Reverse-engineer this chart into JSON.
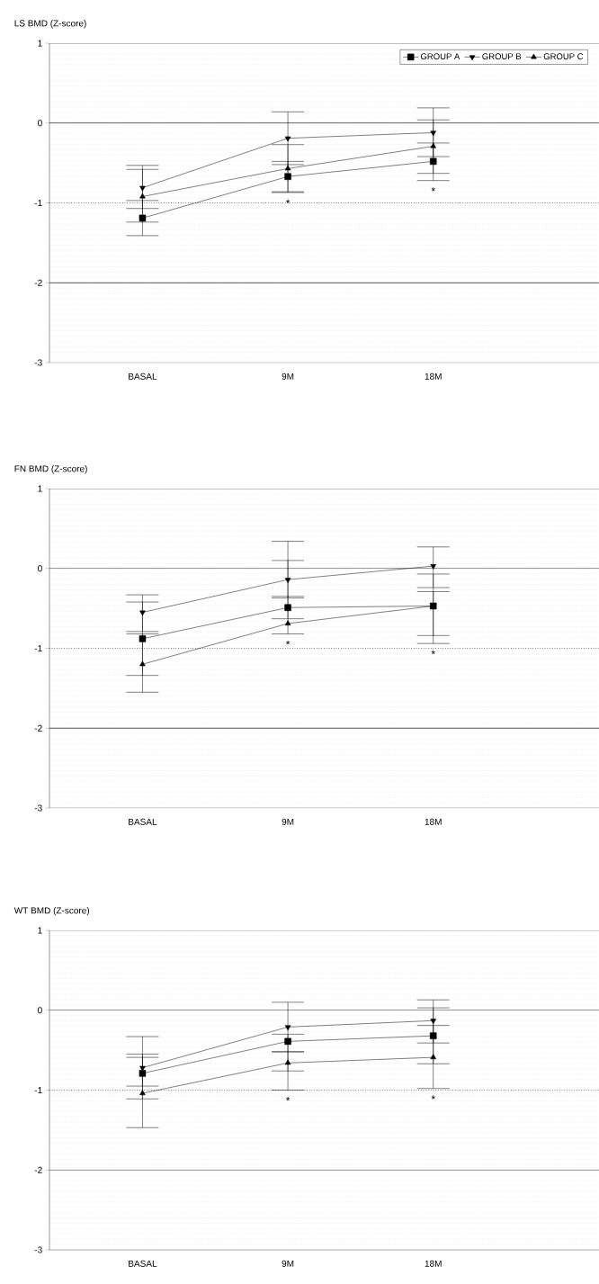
{
  "chart_data": [
    {
      "type": "line",
      "title": "LS BMD (Z-score)",
      "categories": [
        "BASAL",
        "9M",
        "18M"
      ],
      "ylim": [
        -3,
        1
      ],
      "yticks": [
        1,
        0,
        -1,
        -2,
        -3
      ],
      "grid": "y",
      "legend": "top right",
      "series": [
        {
          "name": "GROUP A",
          "color": "#000000",
          "marker": "square",
          "values": [
            -1.19,
            -0.67,
            -0.48
          ],
          "errors": [
            [
              -1.41,
              -0.97
            ],
            [
              -0.86,
              -0.48
            ],
            [
              -0.72,
              -0.25
            ]
          ]
        },
        {
          "name": "GROUP B",
          "color": "#000000",
          "marker": "triangle-down",
          "values": [
            -0.81,
            -0.19,
            -0.12
          ],
          "errors": [
            [
              -1.07,
              -0.53
            ],
            [
              -0.52,
              0.14
            ],
            [
              -0.42,
              0.19
            ]
          ]
        },
        {
          "name": "GROUP C",
          "color": "#000000",
          "marker": "triangle",
          "values": [
            -0.92,
            -0.57,
            -0.29
          ],
          "errors": [
            [
              -1.24,
              -0.58
            ],
            [
              -0.87,
              -0.27
            ],
            [
              -0.63,
              0.04
            ]
          ]
        }
      ],
      "ref_lines": [
        {
          "axis": "y",
          "value": 0,
          "line_style": "solid",
          "color": "#000000"
        },
        {
          "axis": "y",
          "value": -1,
          "line_style": "dotted",
          "color": "#000000"
        },
        {
          "axis": "y",
          "value": -2,
          "line_style": "solid",
          "color": "#000000"
        }
      ],
      "annotations": [
        "*",
        "*"
      ]
    },
    {
      "type": "line",
      "title": "FN BMD (Z-score)",
      "categories": [
        "BASAL",
        "9M",
        "18M"
      ],
      "ylim": [
        -3,
        1
      ],
      "yticks": [
        1,
        0,
        -1,
        -2,
        -3
      ],
      "grid": "y",
      "series": [
        {
          "color": "#000000",
          "marker": "square",
          "values": [
            -0.88,
            -0.49,
            -0.47
          ],
          "errors": [
            [
              -1.34,
              -0.42
            ],
            [
              -0.63,
              -0.35
            ],
            [
              -0.84,
              -0.07
            ]
          ]
        },
        {
          "color": "#000000",
          "marker": "triangle-down",
          "values": [
            -0.55,
            -0.14,
            0.03
          ],
          "errors": [
            [
              -0.79,
              -0.33
            ],
            [
              -0.37,
              0.34
            ],
            [
              -0.24,
              0.27
            ]
          ]
        },
        {
          "color": "#000000",
          "marker": "triangle",
          "values": [
            -1.2,
            -0.69,
            -0.47
          ],
          "errors": [
            [
              -1.55,
              -0.82
            ],
            [
              -0.82,
              0.1
            ],
            [
              -0.94,
              -0.29
            ]
          ]
        }
      ],
      "ref_lines": [
        {
          "axis": "y",
          "value": 0,
          "line_style": "solid",
          "color": "#000000"
        },
        {
          "axis": "y",
          "value": -1,
          "line_style": "dotted",
          "color": "#000000"
        },
        {
          "axis": "y",
          "value": -2,
          "line_style": "solid",
          "color": "#000000"
        }
      ],
      "annotations": [
        "*",
        "*"
      ]
    },
    {
      "type": "line",
      "title": "WT BMD (Z-score)",
      "categories": [
        "BASAL",
        "9M",
        "18M"
      ],
      "ylim": [
        -3,
        1
      ],
      "yticks": [
        1,
        0,
        -1,
        -2,
        -3
      ],
      "grid": "y",
      "series": [
        {
          "color": "#000000",
          "marker": "square",
          "values": [
            -0.79,
            -0.39,
            -0.32
          ],
          "errors": [
            [
              -0.95,
              -0.55
            ],
            [
              -0.76,
              -0.3
            ],
            [
              -0.67,
              0.03
            ]
          ]
        },
        {
          "color": "#000000",
          "marker": "triangle-down",
          "values": [
            -0.72,
            -0.21,
            -0.13
          ],
          "errors": [
            [
              -1.11,
              -0.33
            ],
            [
              -0.52,
              0.1
            ],
            [
              -0.41,
              0.13
            ]
          ]
        },
        {
          "color": "#000000",
          "marker": "triangle",
          "values": [
            -1.04,
            -0.66,
            -0.59
          ],
          "errors": [
            [
              -1.47,
              -0.59
            ],
            [
              -1.0,
              -0.52
            ],
            [
              -0.98,
              -0.19
            ]
          ]
        }
      ],
      "ref_lines": [
        {
          "axis": "y",
          "value": 0,
          "line_style": "solid",
          "color": "#000000"
        },
        {
          "axis": "y",
          "value": -1,
          "line_style": "dotted",
          "color": "#000000"
        },
        {
          "axis": "y",
          "value": -2,
          "line_style": "solid",
          "color": "#000000"
        }
      ],
      "annotations": [
        "*",
        "*"
      ]
    }
  ]
}
